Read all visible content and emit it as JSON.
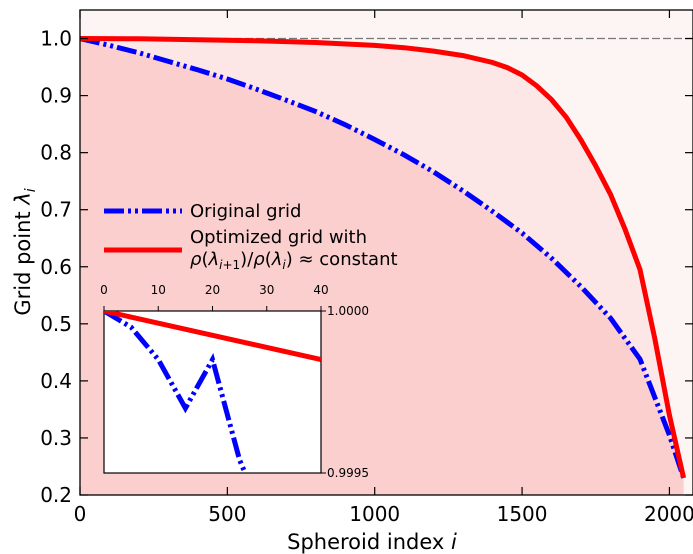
{
  "chart_data": {
    "type": "line",
    "xlabel": "Spheroid index",
    "xlabel_var": "i",
    "ylabel": "Grid point",
    "ylabel_var": "λ",
    "ylabel_sub": "i",
    "xlim": [
      0,
      2080
    ],
    "ylim": [
      0.2,
      1.05
    ],
    "x_ticks": [
      "0",
      "500",
      "1000",
      "1500",
      "2000"
    ],
    "y_ticks": [
      "0.2",
      "0.3",
      "0.4",
      "0.5",
      "0.6",
      "0.7",
      "0.8",
      "0.9",
      "1.0"
    ],
    "reference_line": 1.0,
    "fill_colors": {
      "below_optimized": "#fde6e6",
      "below_original": "#fccfcf",
      "above": "#fdf4f4"
    },
    "series": [
      {
        "name": "Original grid",
        "color": "#0000ff",
        "style": "dash-dot-dot",
        "x": [
          0,
          100,
          200,
          300,
          400,
          500,
          600,
          700,
          800,
          900,
          1000,
          1100,
          1200,
          1300,
          1400,
          1500,
          1600,
          1700,
          1800,
          1900,
          2000,
          2048
        ],
        "y": [
          1.0,
          0.988,
          0.975,
          0.96,
          0.945,
          0.929,
          0.911,
          0.892,
          0.872,
          0.849,
          0.823,
          0.796,
          0.766,
          0.733,
          0.697,
          0.659,
          0.615,
          0.565,
          0.51,
          0.438,
          0.305,
          0.23
        ]
      },
      {
        "name": "Optimized grid with",
        "name_line2": "ρ(λi+1)/ρ(λi) ≈ constant",
        "color": "#ff0000",
        "style": "solid",
        "x": [
          0,
          200,
          400,
          600,
          800,
          1000,
          1100,
          1200,
          1300,
          1400,
          1450,
          1500,
          1550,
          1600,
          1650,
          1700,
          1750,
          1800,
          1850,
          1900,
          1950,
          2000,
          2048
        ],
        "y": [
          1.0,
          0.9995,
          0.998,
          0.996,
          0.993,
          0.988,
          0.984,
          0.978,
          0.97,
          0.958,
          0.949,
          0.936,
          0.917,
          0.893,
          0.862,
          0.822,
          0.777,
          0.727,
          0.665,
          0.595,
          0.475,
          0.34,
          0.23
        ]
      }
    ],
    "inset": {
      "xlim": [
        0,
        40
      ],
      "ylim": [
        0.9995,
        1.0
      ],
      "x_ticks": [
        "0",
        "10",
        "20",
        "30",
        "40"
      ],
      "y_ticks": [
        "1.0000",
        "0.9995"
      ],
      "series": [
        {
          "name": "Original grid",
          "x": [
            0,
            5,
            10,
            15,
            20,
            25,
            26
          ],
          "y": [
            1.0,
            0.99995,
            0.99985,
            0.9997,
            0.99985,
            0.99954,
            0.9995
          ]
        },
        {
          "name": "Optimized grid",
          "x": [
            0,
            40
          ],
          "y": [
            1.0,
            0.99985
          ]
        }
      ]
    }
  }
}
